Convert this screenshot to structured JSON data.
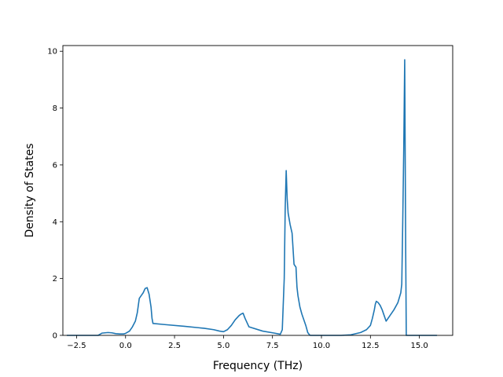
{
  "chart_data": {
    "type": "line",
    "title": "",
    "xlabel": "Frequency (THz)",
    "ylabel": "Density of States",
    "xlim": [
      -3.2,
      16.7
    ],
    "ylim": [
      0,
      10.2
    ],
    "xticks": [
      -2.5,
      0.0,
      2.5,
      5.0,
      7.5,
      10.0,
      12.5,
      15.0
    ],
    "xtick_labels": [
      "−2.5",
      "0.0",
      "2.5",
      "5.0",
      "7.5",
      "10.0",
      "12.5",
      "15.0"
    ],
    "yticks": [
      0,
      2,
      4,
      6,
      8,
      10
    ],
    "ytick_labels": [
      "0",
      "2",
      "4",
      "6",
      "8",
      "10"
    ],
    "grid": false,
    "legend": "none",
    "series": [
      {
        "color": "#1f77b4",
        "x": [
          -3.0,
          -1.4,
          -1.2,
          -0.9,
          -0.7,
          -0.5,
          -0.3,
          -0.1,
          0.0,
          0.2,
          0.35,
          0.5,
          0.6,
          0.7,
          0.8,
          0.9,
          1.0,
          1.1,
          1.2,
          1.3,
          1.35,
          1.4,
          2.0,
          3.0,
          4.0,
          4.5,
          4.8,
          5.0,
          5.2,
          5.4,
          5.6,
          5.8,
          5.9,
          6.0,
          6.1,
          6.3,
          7.0,
          7.6,
          7.9,
          8.0,
          8.1,
          8.15,
          8.2,
          8.25,
          8.3,
          8.35,
          8.4,
          8.5,
          8.6,
          8.65,
          8.7,
          8.75,
          8.8,
          8.9,
          9.0,
          9.2,
          9.3,
          9.4,
          9.45,
          10.0,
          10.5,
          11.0,
          11.5,
          12.0,
          12.3,
          12.5,
          12.6,
          12.7,
          12.75,
          12.8,
          12.9,
          13.0,
          13.1,
          13.2,
          13.3,
          13.4,
          13.5,
          13.7,
          13.9,
          14.05,
          14.1,
          14.15,
          14.2,
          14.25,
          14.3,
          14.33,
          14.36,
          14.37,
          15.0,
          15.5,
          15.9
        ],
        "y": [
          0.0,
          0.0,
          0.08,
          0.1,
          0.09,
          0.06,
          0.05,
          0.05,
          0.07,
          0.15,
          0.3,
          0.5,
          0.8,
          1.3,
          1.4,
          1.5,
          1.65,
          1.68,
          1.45,
          1.0,
          0.6,
          0.42,
          0.38,
          0.32,
          0.25,
          0.2,
          0.15,
          0.13,
          0.2,
          0.35,
          0.55,
          0.7,
          0.75,
          0.78,
          0.6,
          0.3,
          0.15,
          0.08,
          0.04,
          0.2,
          2.0,
          4.5,
          5.8,
          4.8,
          4.3,
          4.1,
          3.9,
          3.6,
          2.5,
          2.45,
          2.4,
          1.7,
          1.4,
          1.0,
          0.75,
          0.35,
          0.1,
          0.01,
          0.0,
          0.0,
          0.0,
          0.0,
          0.02,
          0.1,
          0.2,
          0.35,
          0.6,
          0.9,
          1.1,
          1.2,
          1.15,
          1.05,
          0.9,
          0.7,
          0.5,
          0.6,
          0.7,
          0.9,
          1.15,
          1.5,
          1.8,
          4.0,
          6.5,
          9.7,
          3.0,
          0.0,
          0.0,
          0.0,
          0.0,
          0.0,
          0.0
        ]
      }
    ]
  }
}
